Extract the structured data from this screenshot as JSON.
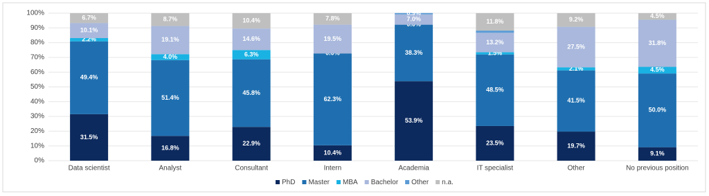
{
  "chart_data": {
    "type": "stacked_bar",
    "categories": [
      "Data scientist",
      "Analyst",
      "Consultant",
      "Intern",
      "Academia",
      "IT specialist",
      "Other",
      "No previous position"
    ],
    "series": [
      {
        "name": "PhD",
        "color": "#0d2a5e",
        "values": [
          31.5,
          16.8,
          22.9,
          10.4,
          53.9,
          23.5,
          19.7,
          9.1
        ],
        "value_labels": [
          "31.5%",
          "16.8%",
          "22.9%",
          "10.4%",
          "53.9%",
          "23.5%",
          "19.7%",
          "9.1%"
        ]
      },
      {
        "name": "Master",
        "color": "#1f6fb0",
        "values": [
          49.4,
          51.4,
          45.8,
          62.3,
          38.3,
          48.5,
          41.5,
          50.0
        ],
        "value_labels": [
          "49.4%",
          "51.4%",
          "45.8%",
          "62.3%",
          "38.3%",
          "48.5%",
          "41.5%",
          "50.0%"
        ]
      },
      {
        "name": "MBA",
        "color": "#19b2e3",
        "values": [
          2.2,
          4.0,
          6.3,
          0.0,
          0.0,
          1.5,
          2.1,
          4.5
        ],
        "value_labels": [
          "2.2%",
          "4.0%",
          "6.3%",
          "0.0%",
          "0.0%",
          "1.5%",
          "2.1%",
          "4.5%"
        ]
      },
      {
        "name": "Bachelor",
        "color": "#a9b8dc",
        "values": [
          10.1,
          19.1,
          14.6,
          19.5,
          7.0,
          13.2,
          27.5,
          31.8
        ],
        "value_labels": [
          "10.1%",
          "19.1%",
          "14.6%",
          "19.5%",
          "7.0%",
          "13.2%",
          "27.5%",
          "31.8%"
        ]
      },
      {
        "name": "Other",
        "color": "#5b9bd5",
        "values": [
          0.1,
          0,
          0,
          0,
          0.9,
          1.5,
          0,
          0.1
        ],
        "value_labels": [
          null,
          null,
          null,
          null,
          "0.9%",
          null,
          null,
          null
        ]
      },
      {
        "name": "n.a.",
        "color": "#bfbfbf",
        "values": [
          6.7,
          8.7,
          10.4,
          7.8,
          0,
          11.8,
          9.2,
          4.5
        ],
        "value_labels": [
          "6.7%",
          "8.7%",
          "10.4%",
          "7.8%",
          null,
          "11.8%",
          "9.2%",
          "4.5%"
        ]
      }
    ],
    "ylim": [
      0,
      100
    ],
    "yticks": [
      {
        "value": 0,
        "label": "0%"
      },
      {
        "value": 10,
        "label": "10%"
      },
      {
        "value": 20,
        "label": "20%"
      },
      {
        "value": 30,
        "label": "30%"
      },
      {
        "value": 40,
        "label": "40%"
      },
      {
        "value": 50,
        "label": "50%"
      },
      {
        "value": 60,
        "label": "60%"
      },
      {
        "value": 70,
        "label": "70%"
      },
      {
        "value": 80,
        "label": "80%"
      },
      {
        "value": 90,
        "label": "90%"
      },
      {
        "value": 100,
        "label": "100%"
      }
    ],
    "grid": true,
    "legend": "bottom"
  }
}
